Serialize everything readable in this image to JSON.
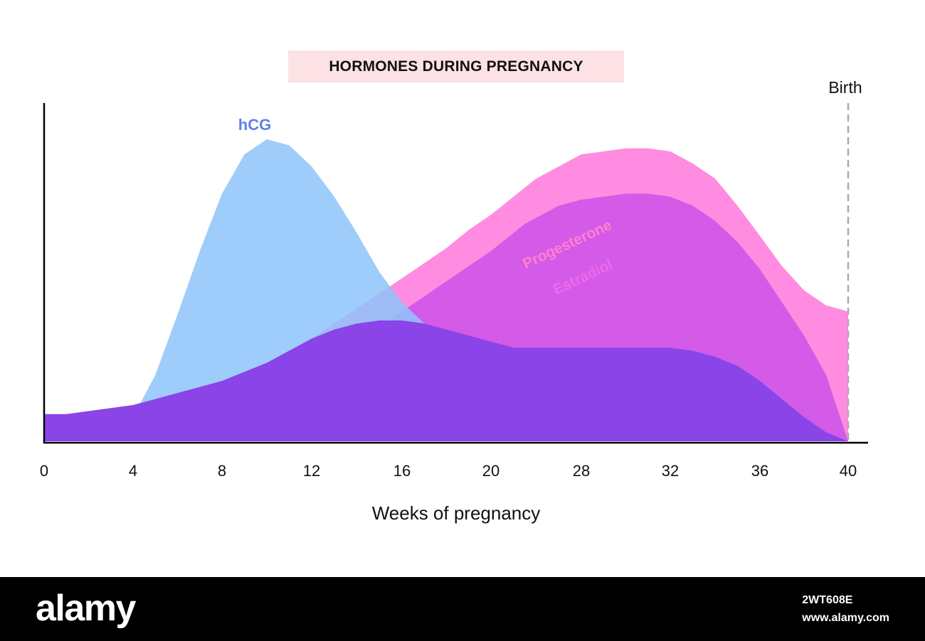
{
  "chart_data": {
    "type": "area",
    "title": "HORMONES DURING PREGNANCY",
    "xlabel": "Weeks of pregnancy",
    "ylabel": "",
    "x_ticks": [
      0,
      4,
      8,
      12,
      16,
      20,
      28,
      32,
      36,
      40
    ],
    "x_tick_labels": [
      "0",
      "4",
      "8",
      "12",
      "16",
      "20",
      "28",
      "32",
      "36",
      "40"
    ],
    "ylim": [
      0,
      100
    ],
    "grid": false,
    "legend": "none",
    "annotations": [
      {
        "x_index": 9,
        "label": "Birth"
      }
    ],
    "series": [
      {
        "name": "Progesterone",
        "color": "#ff8ce0",
        "points": [
          [
            0,
            9
          ],
          [
            1,
            9
          ],
          [
            2,
            10
          ],
          [
            3,
            11
          ],
          [
            4,
            12
          ],
          [
            5,
            14
          ],
          [
            6,
            16
          ],
          [
            7,
            18
          ],
          [
            8,
            20
          ],
          [
            9,
            23
          ],
          [
            10,
            26
          ],
          [
            11,
            30
          ],
          [
            12,
            34
          ],
          [
            13,
            39
          ],
          [
            14,
            44
          ],
          [
            15,
            49
          ],
          [
            16,
            54
          ],
          [
            17,
            59
          ],
          [
            18,
            64
          ],
          [
            19,
            70
          ],
          [
            20,
            75
          ],
          [
            21,
            78
          ],
          [
            22,
            81
          ],
          [
            23,
            84
          ],
          [
            24,
            87
          ],
          [
            25,
            89
          ],
          [
            26,
            91
          ],
          [
            27,
            93
          ],
          [
            28,
            95
          ],
          [
            29,
            96
          ],
          [
            30,
            97
          ],
          [
            31,
            97
          ],
          [
            32,
            96
          ],
          [
            33,
            92
          ],
          [
            34,
            87
          ],
          [
            35,
            78
          ],
          [
            36,
            68
          ],
          [
            37,
            58
          ],
          [
            38,
            50
          ],
          [
            39,
            45
          ],
          [
            40,
            43
          ]
        ]
      },
      {
        "name": "Estradiol",
        "color": "#d45ae8",
        "points": [
          [
            0,
            0
          ],
          [
            1,
            0
          ],
          [
            2,
            1
          ],
          [
            3,
            2
          ],
          [
            4,
            4
          ],
          [
            5,
            6
          ],
          [
            6,
            8
          ],
          [
            7,
            10
          ],
          [
            8,
            12
          ],
          [
            9,
            15
          ],
          [
            10,
            18
          ],
          [
            11,
            21
          ],
          [
            12,
            25
          ],
          [
            13,
            29
          ],
          [
            14,
            33
          ],
          [
            15,
            38
          ],
          [
            16,
            43
          ],
          [
            17,
            48
          ],
          [
            18,
            53
          ],
          [
            19,
            58
          ],
          [
            20,
            63
          ],
          [
            21,
            66
          ],
          [
            22,
            69
          ],
          [
            23,
            72
          ],
          [
            24,
            74
          ],
          [
            25,
            76
          ],
          [
            26,
            78
          ],
          [
            27,
            79
          ],
          [
            28,
            80
          ],
          [
            29,
            81
          ],
          [
            30,
            82
          ],
          [
            31,
            82
          ],
          [
            32,
            81
          ],
          [
            33,
            78
          ],
          [
            34,
            73
          ],
          [
            35,
            66
          ],
          [
            36,
            57
          ],
          [
            37,
            46
          ],
          [
            38,
            35
          ],
          [
            39,
            22
          ],
          [
            40,
            0
          ]
        ]
      },
      {
        "name": "hCG",
        "color": "#8ec4fa",
        "points": [
          [
            0,
            0
          ],
          [
            1,
            1
          ],
          [
            2,
            2
          ],
          [
            3,
            4
          ],
          [
            4,
            8
          ],
          [
            5,
            22
          ],
          [
            6,
            42
          ],
          [
            7,
            63
          ],
          [
            8,
            82
          ],
          [
            9,
            95
          ],
          [
            10,
            100
          ],
          [
            11,
            98
          ],
          [
            12,
            91
          ],
          [
            13,
            81
          ],
          [
            14,
            69
          ],
          [
            15,
            56
          ],
          [
            16,
            46
          ],
          [
            17,
            39
          ],
          [
            18,
            35
          ],
          [
            19,
            32
          ],
          [
            20,
            31
          ],
          [
            21,
            31
          ],
          [
            22,
            31
          ],
          [
            23,
            31
          ],
          [
            24,
            31
          ],
          [
            25,
            31
          ],
          [
            26,
            31
          ],
          [
            27,
            31
          ],
          [
            28,
            31
          ],
          [
            29,
            31
          ],
          [
            30,
            31
          ],
          [
            31,
            31
          ],
          [
            32,
            31
          ],
          [
            33,
            30
          ],
          [
            34,
            28
          ],
          [
            35,
            25
          ],
          [
            36,
            20
          ],
          [
            37,
            14
          ],
          [
            38,
            8
          ],
          [
            39,
            3
          ],
          [
            40,
            0
          ]
        ]
      },
      {
        "name": "",
        "color": "#8a44e8",
        "points": [
          [
            0,
            9
          ],
          [
            1,
            9
          ],
          [
            2,
            10
          ],
          [
            3,
            11
          ],
          [
            4,
            12
          ],
          [
            5,
            14
          ],
          [
            6,
            16
          ],
          [
            7,
            18
          ],
          [
            8,
            20
          ],
          [
            9,
            23
          ],
          [
            10,
            26
          ],
          [
            11,
            30
          ],
          [
            12,
            34
          ],
          [
            13,
            37
          ],
          [
            14,
            39
          ],
          [
            15,
            40
          ],
          [
            16,
            40
          ],
          [
            17,
            39
          ],
          [
            18,
            37
          ],
          [
            19,
            35
          ],
          [
            20,
            33
          ],
          [
            21,
            32
          ],
          [
            22,
            31
          ],
          [
            23,
            31
          ],
          [
            24,
            31
          ],
          [
            25,
            31
          ],
          [
            26,
            31
          ],
          [
            27,
            31
          ],
          [
            28,
            31
          ],
          [
            29,
            31
          ],
          [
            30,
            31
          ],
          [
            31,
            31
          ],
          [
            32,
            31
          ],
          [
            33,
            30
          ],
          [
            34,
            28
          ],
          [
            35,
            25
          ],
          [
            36,
            20
          ],
          [
            37,
            14
          ],
          [
            38,
            8
          ],
          [
            39,
            3
          ],
          [
            40,
            0
          ]
        ]
      }
    ]
  },
  "series_labels": {
    "hcg": "hCG",
    "progesterone": "Progesterone",
    "estradiol": "Estradiol"
  },
  "footer": {
    "brand": "alamy",
    "image_id": "2WT608E",
    "site": "www.alamy.com"
  },
  "colors": {
    "title_bg": "#fde2e5",
    "hcg_label": "#5b82e6",
    "progesterone_label": "#ff7fd2",
    "estradiol_label": "#ee6ae8",
    "axis": "#000000",
    "birth_line": "#aaaaaa"
  }
}
